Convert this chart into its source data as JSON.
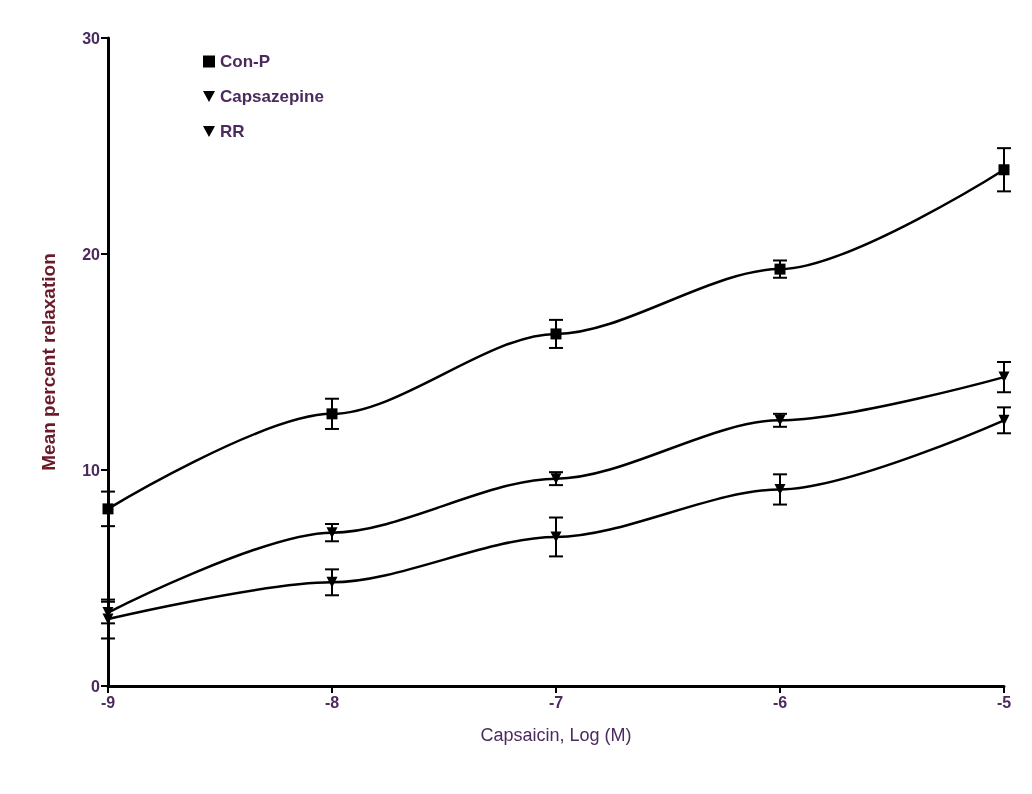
{
  "chart_data": {
    "type": "line",
    "xlabel": "Capsaicin, Log (M)",
    "ylabel": "Mean percent relaxation",
    "x": [
      -9,
      -8,
      -7,
      -6,
      -5
    ],
    "xlim": [
      -9,
      -5
    ],
    "xticks": [
      -9,
      -8,
      -7,
      -6,
      -5
    ],
    "ylim": [
      0,
      30
    ],
    "yticks": [
      0,
      10,
      20,
      30
    ],
    "grid": false,
    "legend": "top left",
    "line_style": "solid",
    "series": [
      {
        "name": "Con-P",
        "color": "#000000",
        "marker": "square",
        "values": [
          8.2,
          12.6,
          16.3,
          19.3,
          23.9
        ],
        "errors": [
          0.8,
          0.7,
          0.65,
          0.4,
          1.0
        ]
      },
      {
        "name": "Capsazepine",
        "color": "#000000",
        "marker": "triangle-down",
        "values": [
          3.4,
          7.1,
          9.6,
          12.3,
          14.3
        ],
        "errors": [
          0.5,
          0.4,
          0.3,
          0.3,
          0.7
        ]
      },
      {
        "name": "RR",
        "color": "#000000",
        "marker": "triangle-down",
        "values": [
          3.1,
          4.8,
          6.9,
          9.1,
          12.3
        ],
        "errors": [
          0.9,
          0.6,
          0.9,
          0.7,
          0.6
        ]
      }
    ]
  }
}
